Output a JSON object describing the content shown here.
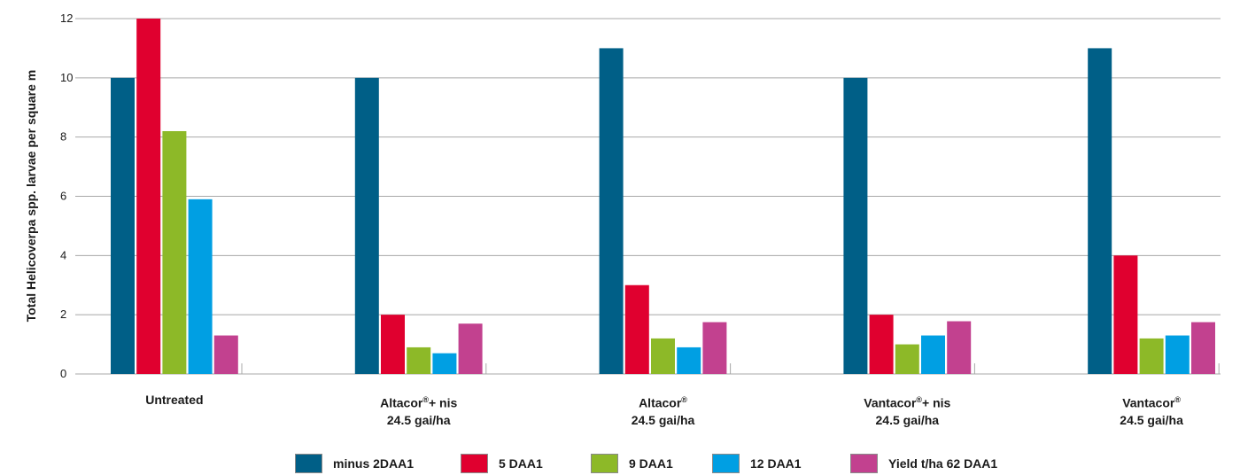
{
  "chart_data": {
    "type": "bar",
    "ylabel": "Total Helicoverpa spp. larvae per square m",
    "ylim": [
      0,
      12
    ],
    "yticks": [
      0,
      2,
      4,
      6,
      8,
      10,
      12
    ],
    "grid": true,
    "legend_position": "bottom",
    "categories": [
      {
        "name": "Untreated",
        "line2": ""
      },
      {
        "name": "Altacor",
        "sup": "®",
        "suffix": "+ nis",
        "line2": "24.5 gai/ha"
      },
      {
        "name": "Altacor",
        "sup": "®",
        "suffix": "",
        "line2": "24.5 gai/ha"
      },
      {
        "name": "Vantacor",
        "sup": "®",
        "suffix": "+ nis",
        "line2": "24.5 gai/ha"
      },
      {
        "name": "Vantacor",
        "sup": "®",
        "suffix": "",
        "line2": "24.5 gai/ha"
      }
    ],
    "series": [
      {
        "name": "minus 2DAA1",
        "color": "#005f87",
        "values": [
          10,
          10,
          11,
          10,
          11
        ]
      },
      {
        "name": "5 DAA1",
        "color": "#e0002f",
        "values": [
          12,
          2,
          3,
          2,
          4
        ]
      },
      {
        "name": "9 DAA1",
        "color": "#8db928",
        "values": [
          8.2,
          0.9,
          1.2,
          1.0,
          1.2
        ]
      },
      {
        "name": "12 DAA1",
        "color": "#009fe3",
        "values": [
          5.9,
          0.7,
          0.9,
          1.3,
          1.3
        ]
      },
      {
        "name": "Yield t/ha 62 DAA1",
        "color": "#c2418f",
        "values": [
          1.3,
          1.7,
          1.75,
          1.78,
          1.75
        ]
      }
    ]
  }
}
